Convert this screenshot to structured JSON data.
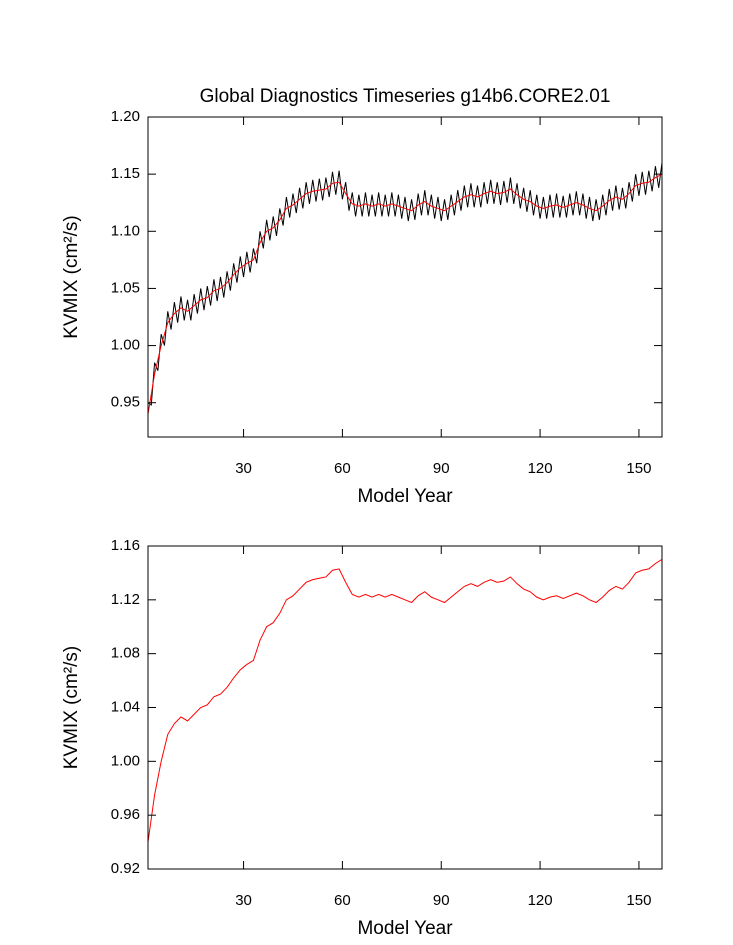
{
  "chart_data": [
    {
      "type": "line",
      "title": "Global Diagnostics Timeseries g14b6.CORE2.01",
      "x_label": "Model Year",
      "y_label": "KVMIX (cm²/s)",
      "xlim": [
        1,
        157
      ],
      "xticks": [
        30,
        60,
        90,
        120,
        150
      ],
      "ylim": [
        0.92,
        1.2
      ],
      "yticks": [
        {
          "value": 0.95,
          "label": "0.95"
        },
        {
          "value": 1.0,
          "label": "1.00"
        },
        {
          "value": 1.05,
          "label": "1.05"
        },
        {
          "value": 1.1,
          "label": "1.10"
        },
        {
          "value": 1.15,
          "label": "1.15"
        },
        {
          "value": 1.2,
          "label": "1.20"
        }
      ],
      "series": [
        {
          "color": "#000000",
          "x": [
            1,
            2,
            3,
            4,
            5,
            6,
            7,
            8,
            9,
            10,
            11,
            12,
            13,
            14,
            15,
            16,
            17,
            18,
            19,
            20,
            21,
            22,
            23,
            24,
            25,
            26,
            27,
            28,
            29,
            30,
            31,
            32,
            33,
            34,
            35,
            36,
            37,
            38,
            39,
            40,
            41,
            42,
            43,
            44,
            45,
            46,
            47,
            48,
            49,
            50,
            51,
            52,
            53,
            54,
            55,
            56,
            57,
            58,
            59,
            60,
            61,
            62,
            63,
            64,
            65,
            66,
            67,
            68,
            69,
            70,
            71,
            72,
            73,
            74,
            75,
            76,
            77,
            78,
            79,
            80,
            81,
            82,
            83,
            84,
            85,
            86,
            87,
            88,
            89,
            90,
            91,
            92,
            93,
            94,
            95,
            96,
            97,
            98,
            99,
            100,
            101,
            102,
            103,
            104,
            105,
            106,
            107,
            108,
            109,
            110,
            111,
            112,
            113,
            114,
            115,
            116,
            117,
            118,
            119,
            120,
            121,
            122,
            123,
            124,
            125,
            126,
            127,
            128,
            129,
            130,
            131,
            132,
            133,
            134,
            135,
            136,
            137,
            138,
            139,
            140,
            141,
            142,
            143,
            144,
            145,
            146,
            147,
            148,
            149,
            150,
            151,
            152,
            153,
            154,
            155,
            156,
            157
          ],
          "values": [
            0.95,
            0.948,
            0.985,
            0.978,
            1.01,
            1.0,
            1.03,
            1.014,
            1.038,
            1.02,
            1.043,
            1.022,
            1.04,
            1.022,
            1.045,
            1.028,
            1.05,
            1.031,
            1.052,
            1.035,
            1.058,
            1.039,
            1.06,
            1.042,
            1.065,
            1.048,
            1.072,
            1.055,
            1.078,
            1.06,
            1.082,
            1.064,
            1.085,
            1.072,
            1.1,
            1.085,
            1.11,
            1.092,
            1.113,
            1.096,
            1.12,
            1.105,
            1.13,
            1.112,
            1.133,
            1.116,
            1.138,
            1.12,
            1.143,
            1.124,
            1.145,
            1.126,
            1.146,
            1.127,
            1.147,
            1.13,
            1.152,
            1.132,
            1.153,
            1.128,
            1.143,
            1.118,
            1.134,
            1.113,
            1.132,
            1.113,
            1.134,
            1.113,
            1.132,
            1.113,
            1.134,
            1.113,
            1.132,
            1.113,
            1.134,
            1.113,
            1.132,
            1.111,
            1.13,
            1.109,
            1.128,
            1.11,
            1.133,
            1.114,
            1.136,
            1.114,
            1.132,
            1.111,
            1.13,
            1.109,
            1.128,
            1.11,
            1.132,
            1.114,
            1.136,
            1.118,
            1.14,
            1.121,
            1.142,
            1.121,
            1.14,
            1.121,
            1.143,
            1.124,
            1.145,
            1.124,
            1.143,
            1.123,
            1.144,
            1.125,
            1.147,
            1.124,
            1.142,
            1.12,
            1.138,
            1.117,
            1.136,
            1.114,
            1.132,
            1.111,
            1.13,
            1.111,
            1.132,
            1.112,
            1.133,
            1.112,
            1.131,
            1.112,
            1.133,
            1.114,
            1.135,
            1.114,
            1.133,
            1.111,
            1.13,
            1.109,
            1.128,
            1.11,
            1.132,
            1.114,
            1.137,
            1.118,
            1.14,
            1.119,
            1.138,
            1.12,
            1.143,
            1.126,
            1.15,
            1.131,
            1.152,
            1.132,
            1.153,
            1.135,
            1.157,
            1.138,
            1.16
          ]
        },
        {
          "color": "#ff0000",
          "x": [
            1,
            3,
            5,
            7,
            9,
            11,
            13,
            15,
            17,
            19,
            21,
            23,
            25,
            27,
            29,
            31,
            33,
            35,
            37,
            39,
            41,
            43,
            45,
            47,
            49,
            51,
            53,
            55,
            57,
            59,
            61,
            63,
            65,
            67,
            69,
            71,
            73,
            75,
            77,
            79,
            81,
            83,
            85,
            87,
            89,
            91,
            93,
            95,
            97,
            99,
            101,
            103,
            105,
            107,
            109,
            111,
            113,
            115,
            117,
            119,
            121,
            123,
            125,
            127,
            129,
            131,
            133,
            135,
            137,
            139,
            141,
            143,
            145,
            147,
            149,
            151,
            153,
            155,
            157
          ],
          "values": [
            0.94,
            0.975,
            1.0,
            1.02,
            1.028,
            1.033,
            1.03,
            1.035,
            1.04,
            1.042,
            1.048,
            1.05,
            1.055,
            1.062,
            1.068,
            1.072,
            1.075,
            1.09,
            1.1,
            1.103,
            1.11,
            1.12,
            1.123,
            1.128,
            1.133,
            1.135,
            1.136,
            1.137,
            1.142,
            1.143,
            1.133,
            1.124,
            1.122,
            1.124,
            1.122,
            1.124,
            1.122,
            1.124,
            1.122,
            1.12,
            1.118,
            1.123,
            1.126,
            1.122,
            1.12,
            1.118,
            1.122,
            1.126,
            1.13,
            1.132,
            1.13,
            1.133,
            1.135,
            1.133,
            1.134,
            1.137,
            1.132,
            1.128,
            1.126,
            1.122,
            1.12,
            1.122,
            1.123,
            1.121,
            1.123,
            1.125,
            1.123,
            1.12,
            1.118,
            1.122,
            1.127,
            1.13,
            1.128,
            1.133,
            1.14,
            1.142,
            1.143,
            1.147,
            1.15
          ]
        }
      ]
    },
    {
      "type": "line",
      "x_label": "Model Year",
      "y_label": "KVMIX (cm²/s)",
      "xlim": [
        1,
        157
      ],
      "xticks": [
        30,
        60,
        90,
        120,
        150
      ],
      "ylim": [
        0.92,
        1.16
      ],
      "yticks": [
        0.92,
        0.96,
        {
          "value": 1.0,
          "label": "1.00"
        },
        1.04,
        1.08,
        1.12,
        1.16
      ],
      "series": [
        {
          "color": "#ff0000",
          "x": [
            1,
            3,
            5,
            7,
            9,
            11,
            13,
            15,
            17,
            19,
            21,
            23,
            25,
            27,
            29,
            31,
            33,
            35,
            37,
            39,
            41,
            43,
            45,
            47,
            49,
            51,
            53,
            55,
            57,
            59,
            61,
            63,
            65,
            67,
            69,
            71,
            73,
            75,
            77,
            79,
            81,
            83,
            85,
            87,
            89,
            91,
            93,
            95,
            97,
            99,
            101,
            103,
            105,
            107,
            109,
            111,
            113,
            115,
            117,
            119,
            121,
            123,
            125,
            127,
            129,
            131,
            133,
            135,
            137,
            139,
            141,
            143,
            145,
            147,
            149,
            151,
            153,
            155,
            157
          ],
          "values": [
            0.94,
            0.975,
            1.0,
            1.02,
            1.028,
            1.033,
            1.03,
            1.035,
            1.04,
            1.042,
            1.048,
            1.05,
            1.055,
            1.062,
            1.068,
            1.072,
            1.075,
            1.09,
            1.1,
            1.103,
            1.11,
            1.12,
            1.123,
            1.128,
            1.133,
            1.135,
            1.136,
            1.137,
            1.142,
            1.143,
            1.133,
            1.124,
            1.122,
            1.124,
            1.122,
            1.124,
            1.122,
            1.124,
            1.122,
            1.12,
            1.118,
            1.123,
            1.126,
            1.122,
            1.12,
            1.118,
            1.122,
            1.126,
            1.13,
            1.132,
            1.13,
            1.133,
            1.135,
            1.133,
            1.134,
            1.137,
            1.132,
            1.128,
            1.126,
            1.122,
            1.12,
            1.122,
            1.123,
            1.121,
            1.123,
            1.125,
            1.123,
            1.12,
            1.118,
            1.122,
            1.127,
            1.13,
            1.128,
            1.133,
            1.14,
            1.142,
            1.143,
            1.147,
            1.15
          ]
        }
      ]
    }
  ]
}
